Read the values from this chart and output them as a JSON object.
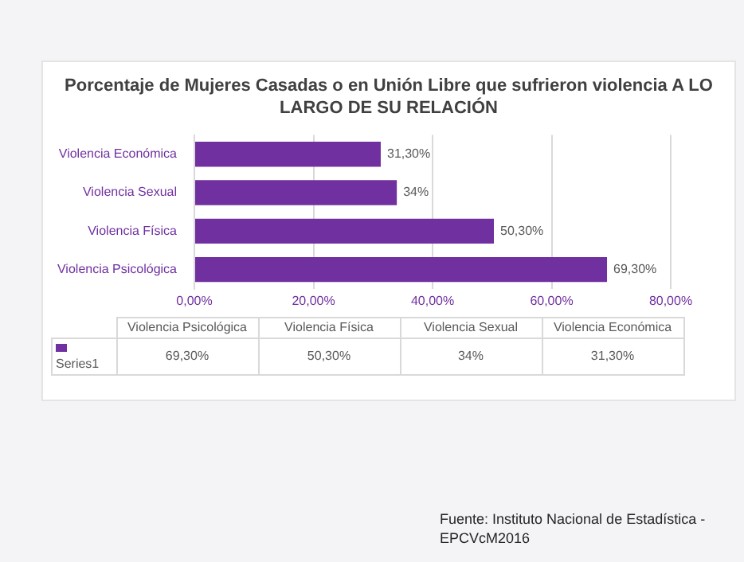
{
  "chart_data": {
    "type": "bar",
    "orientation": "horizontal",
    "title": "Porcentaje de Mujeres Casadas o en Unión Libre que sufrieron violencia A LO LARGO DE SU RELACIÓN",
    "categories": [
      "Violencia Económica",
      "Violencia Sexual",
      "Violencia Física",
      "Violencia Psicológica"
    ],
    "series": [
      {
        "name": "Series1",
        "color": "#7030a0",
        "values": [
          31.3,
          34,
          50.3,
          69.3
        ],
        "value_labels": [
          "31,30%",
          "34%",
          "50,30%",
          "69,30%"
        ]
      }
    ],
    "xlim": [
      0,
      80
    ],
    "xticks": [
      {
        "value": 0,
        "label": "0,00%"
      },
      {
        "value": 20,
        "label": "20,00%"
      },
      {
        "value": 40,
        "label": "40,00%"
      },
      {
        "value": 60,
        "label": "60,00%"
      },
      {
        "value": 80,
        "label": "80,00%"
      }
    ],
    "grid": "x",
    "annotations": [
      "Fuente: Instituto Nacional de Estadística - EPCVcM2016"
    ]
  }
}
